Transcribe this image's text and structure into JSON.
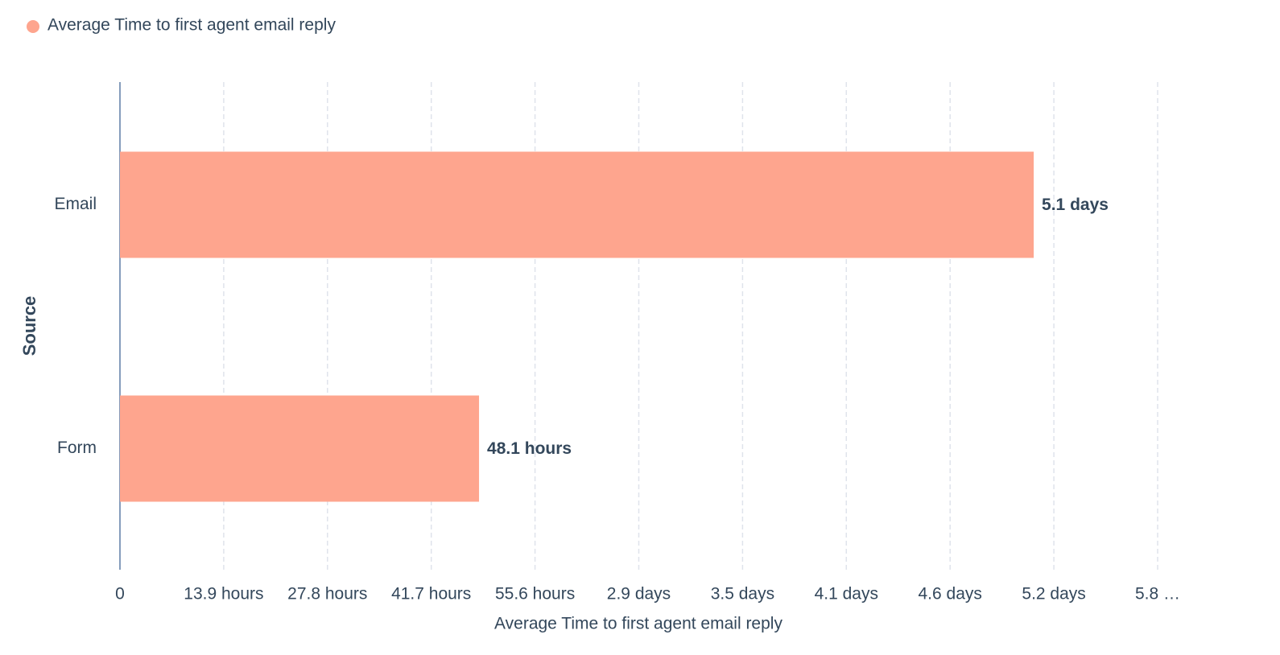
{
  "chart_data": {
    "type": "hbar",
    "x_label": "Average Time to first agent email reply",
    "y_label": "Source",
    "categories": [
      "Email",
      "Form"
    ],
    "series": [
      {
        "name": "Average Time to first agent email reply",
        "color": "#fea58e",
        "values": [
          122.4,
          48.1
        ],
        "value_labels": [
          "5.1 days",
          "48.1 hours"
        ]
      }
    ],
    "xlim": [
      0,
      139
    ],
    "xticks": [
      0,
      {
        "value": 13.9,
        "label": "13.9 hours"
      },
      {
        "value": 27.8,
        "label": "27.8 hours"
      },
      {
        "value": 41.7,
        "label": "41.7 hours"
      },
      {
        "value": 55.6,
        "label": "55.6 hours"
      },
      {
        "value": 69.5,
        "label": "2.9 days"
      },
      {
        "value": 83.4,
        "label": "3.5 days"
      },
      {
        "value": 97.3,
        "label": "4.1 days"
      },
      {
        "value": 111.2,
        "label": "4.6 days"
      },
      {
        "value": 125.1,
        "label": "5.2 days"
      },
      {
        "value": 139,
        "label": "5.8 …"
      }
    ],
    "grid": true,
    "legend": "top-left"
  }
}
